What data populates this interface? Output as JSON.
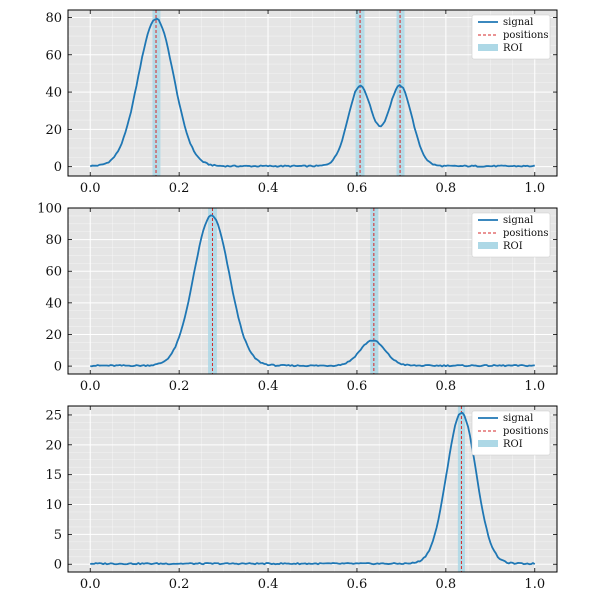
{
  "chart_data": [
    {
      "type": "line",
      "xlim": [
        -0.05,
        1.05
      ],
      "ylim": [
        -5,
        84
      ],
      "xticks": [
        0.0,
        0.2,
        0.4,
        0.6,
        0.8,
        1.0
      ],
      "xtick_labels": [
        "0.0",
        "0.2",
        "0.4",
        "0.6",
        "0.8",
        "1.0"
      ],
      "yticks": [
        0,
        20,
        40,
        60,
        80
      ],
      "ytick_labels": [
        "0",
        "20",
        "40",
        "60",
        "80"
      ],
      "grid": true,
      "legend_position": "top-right",
      "legend": [
        "signal",
        "positions",
        "ROI"
      ],
      "signal_peaks": [
        {
          "center": 0.148,
          "height": 79,
          "width": 0.04
        },
        {
          "center": 0.607,
          "height": 43,
          "width": 0.027
        },
        {
          "center": 0.697,
          "height": 43,
          "width": 0.027
        }
      ],
      "baseline": 0.3,
      "positions": [
        0.148,
        0.607,
        0.697
      ],
      "roi": [
        [
          0.14,
          0.158
        ],
        [
          0.597,
          0.617
        ],
        [
          0.689,
          0.707
        ]
      ]
    },
    {
      "type": "line",
      "xlim": [
        -0.05,
        1.05
      ],
      "ylim": [
        -5,
        100
      ],
      "xticks": [
        0.0,
        0.2,
        0.4,
        0.6,
        0.8,
        1.0
      ],
      "xtick_labels": [
        "0.0",
        "0.2",
        "0.4",
        "0.6",
        "0.8",
        "1.0"
      ],
      "yticks": [
        0,
        20,
        40,
        60,
        80,
        100
      ],
      "ytick_labels": [
        "0",
        "20",
        "40",
        "60",
        "80",
        "100"
      ],
      "grid": true,
      "legend_position": "top-right",
      "legend": [
        "signal",
        "positions",
        "ROI"
      ],
      "signal_peaks": [
        {
          "center": 0.273,
          "height": 95,
          "width": 0.04
        },
        {
          "center": 0.635,
          "height": 16,
          "width": 0.028
        }
      ],
      "baseline": 0.3,
      "positions": [
        0.275,
        0.638
      ],
      "roi": [
        [
          0.265,
          0.285
        ],
        [
          0.63,
          0.648
        ]
      ]
    },
    {
      "type": "line",
      "xlim": [
        -0.05,
        1.05
      ],
      "ylim": [
        -1.3,
        26.5
      ],
      "xticks": [
        0.0,
        0.2,
        0.4,
        0.6,
        0.8,
        1.0
      ],
      "xtick_labels": [
        "0.0",
        "0.2",
        "0.4",
        "0.6",
        "0.8",
        "1.0"
      ],
      "yticks": [
        0,
        5,
        10,
        15,
        20,
        25
      ],
      "ytick_labels": [
        "0",
        "5",
        "10",
        "15",
        "20",
        "25"
      ],
      "grid": true,
      "legend_position": "top-right",
      "legend": [
        "signal",
        "positions",
        "ROI"
      ],
      "signal_peaks": [
        {
          "center": 0.835,
          "height": 25.3,
          "width": 0.033
        }
      ],
      "baseline": 0.1,
      "positions": [
        0.835
      ],
      "roi": [
        [
          0.827,
          0.843
        ]
      ]
    }
  ],
  "colors": {
    "signal": "#1f77b4",
    "positions": "#d62728",
    "roi": "#add8e6",
    "plot_background": "#e5e5e5",
    "grid": "#ffffff"
  }
}
